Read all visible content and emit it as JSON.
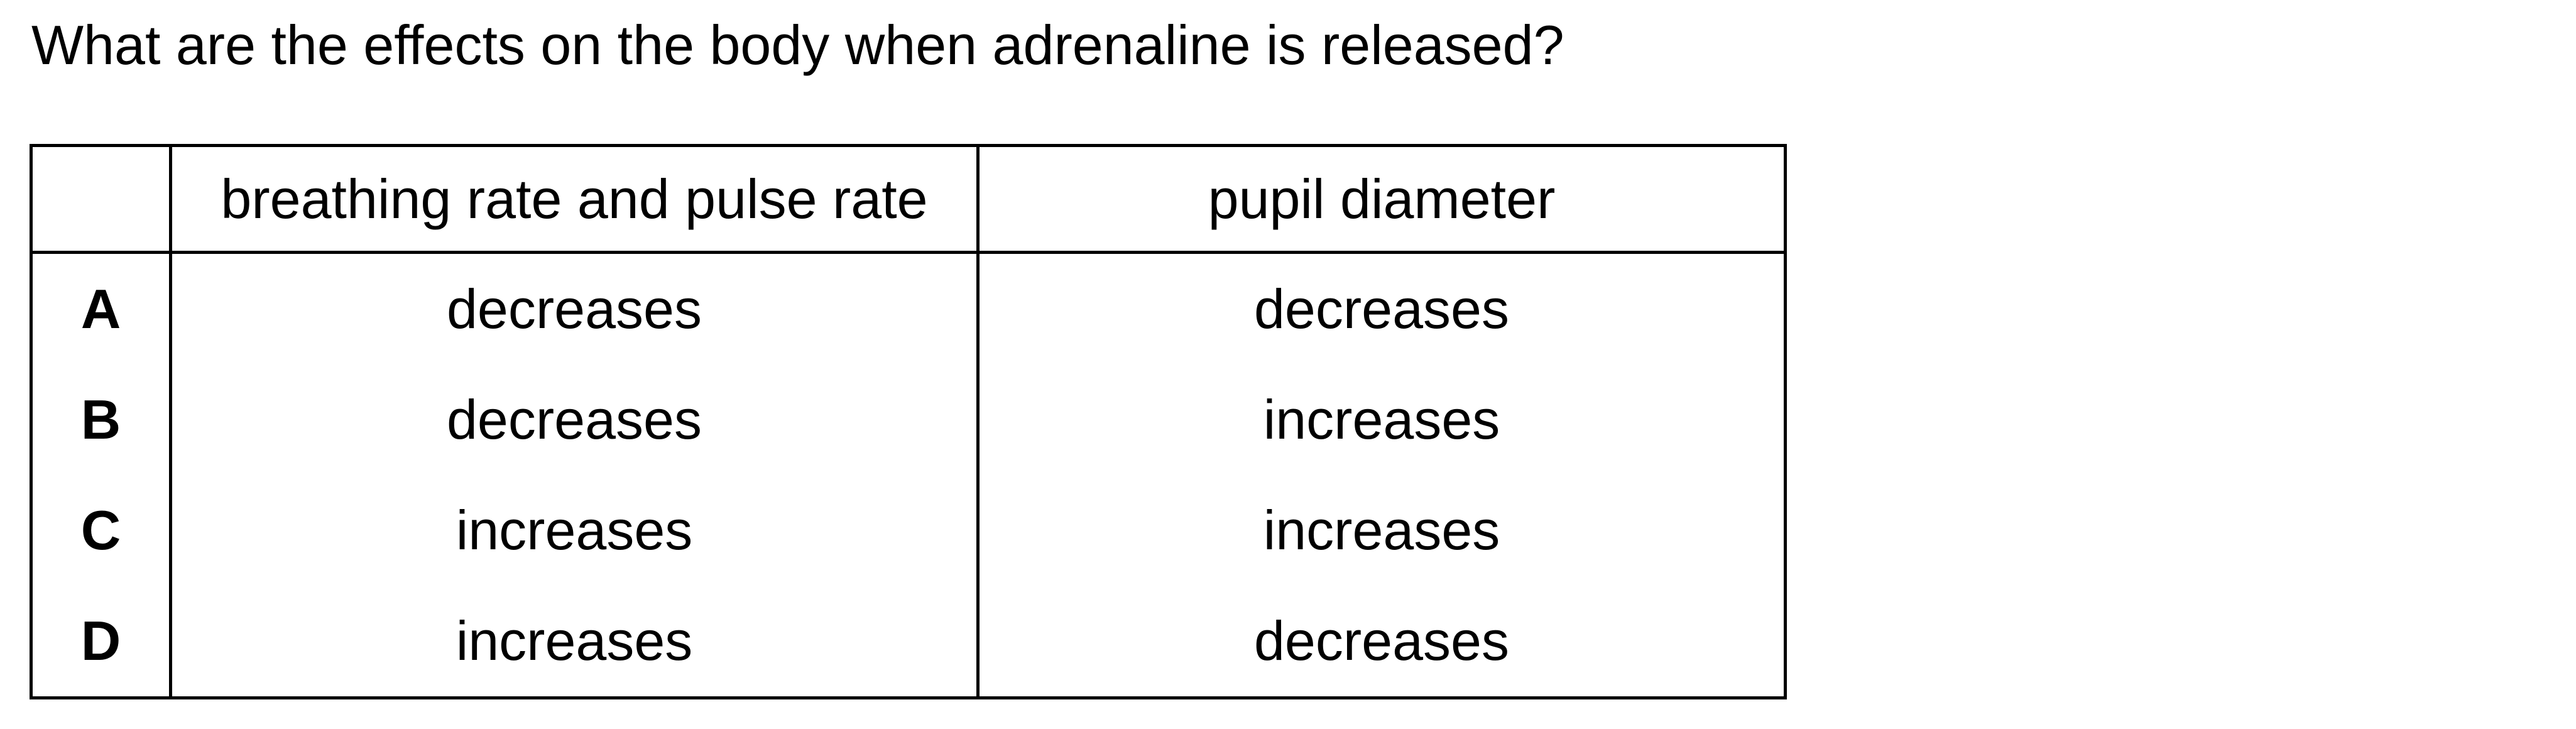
{
  "question": "What are the effects on the body when adrenaline is released?",
  "table": {
    "headers": [
      "",
      "breathing rate and pulse rate",
      "pupil diameter"
    ],
    "rows": [
      {
        "option": "A",
        "breathing_pulse": "decreases",
        "pupil": "decreases"
      },
      {
        "option": "B",
        "breathing_pulse": "decreases",
        "pupil": "increases"
      },
      {
        "option": "C",
        "breathing_pulse": "increases",
        "pupil": "increases"
      },
      {
        "option": "D",
        "breathing_pulse": "increases",
        "pupil": "decreases"
      }
    ]
  }
}
